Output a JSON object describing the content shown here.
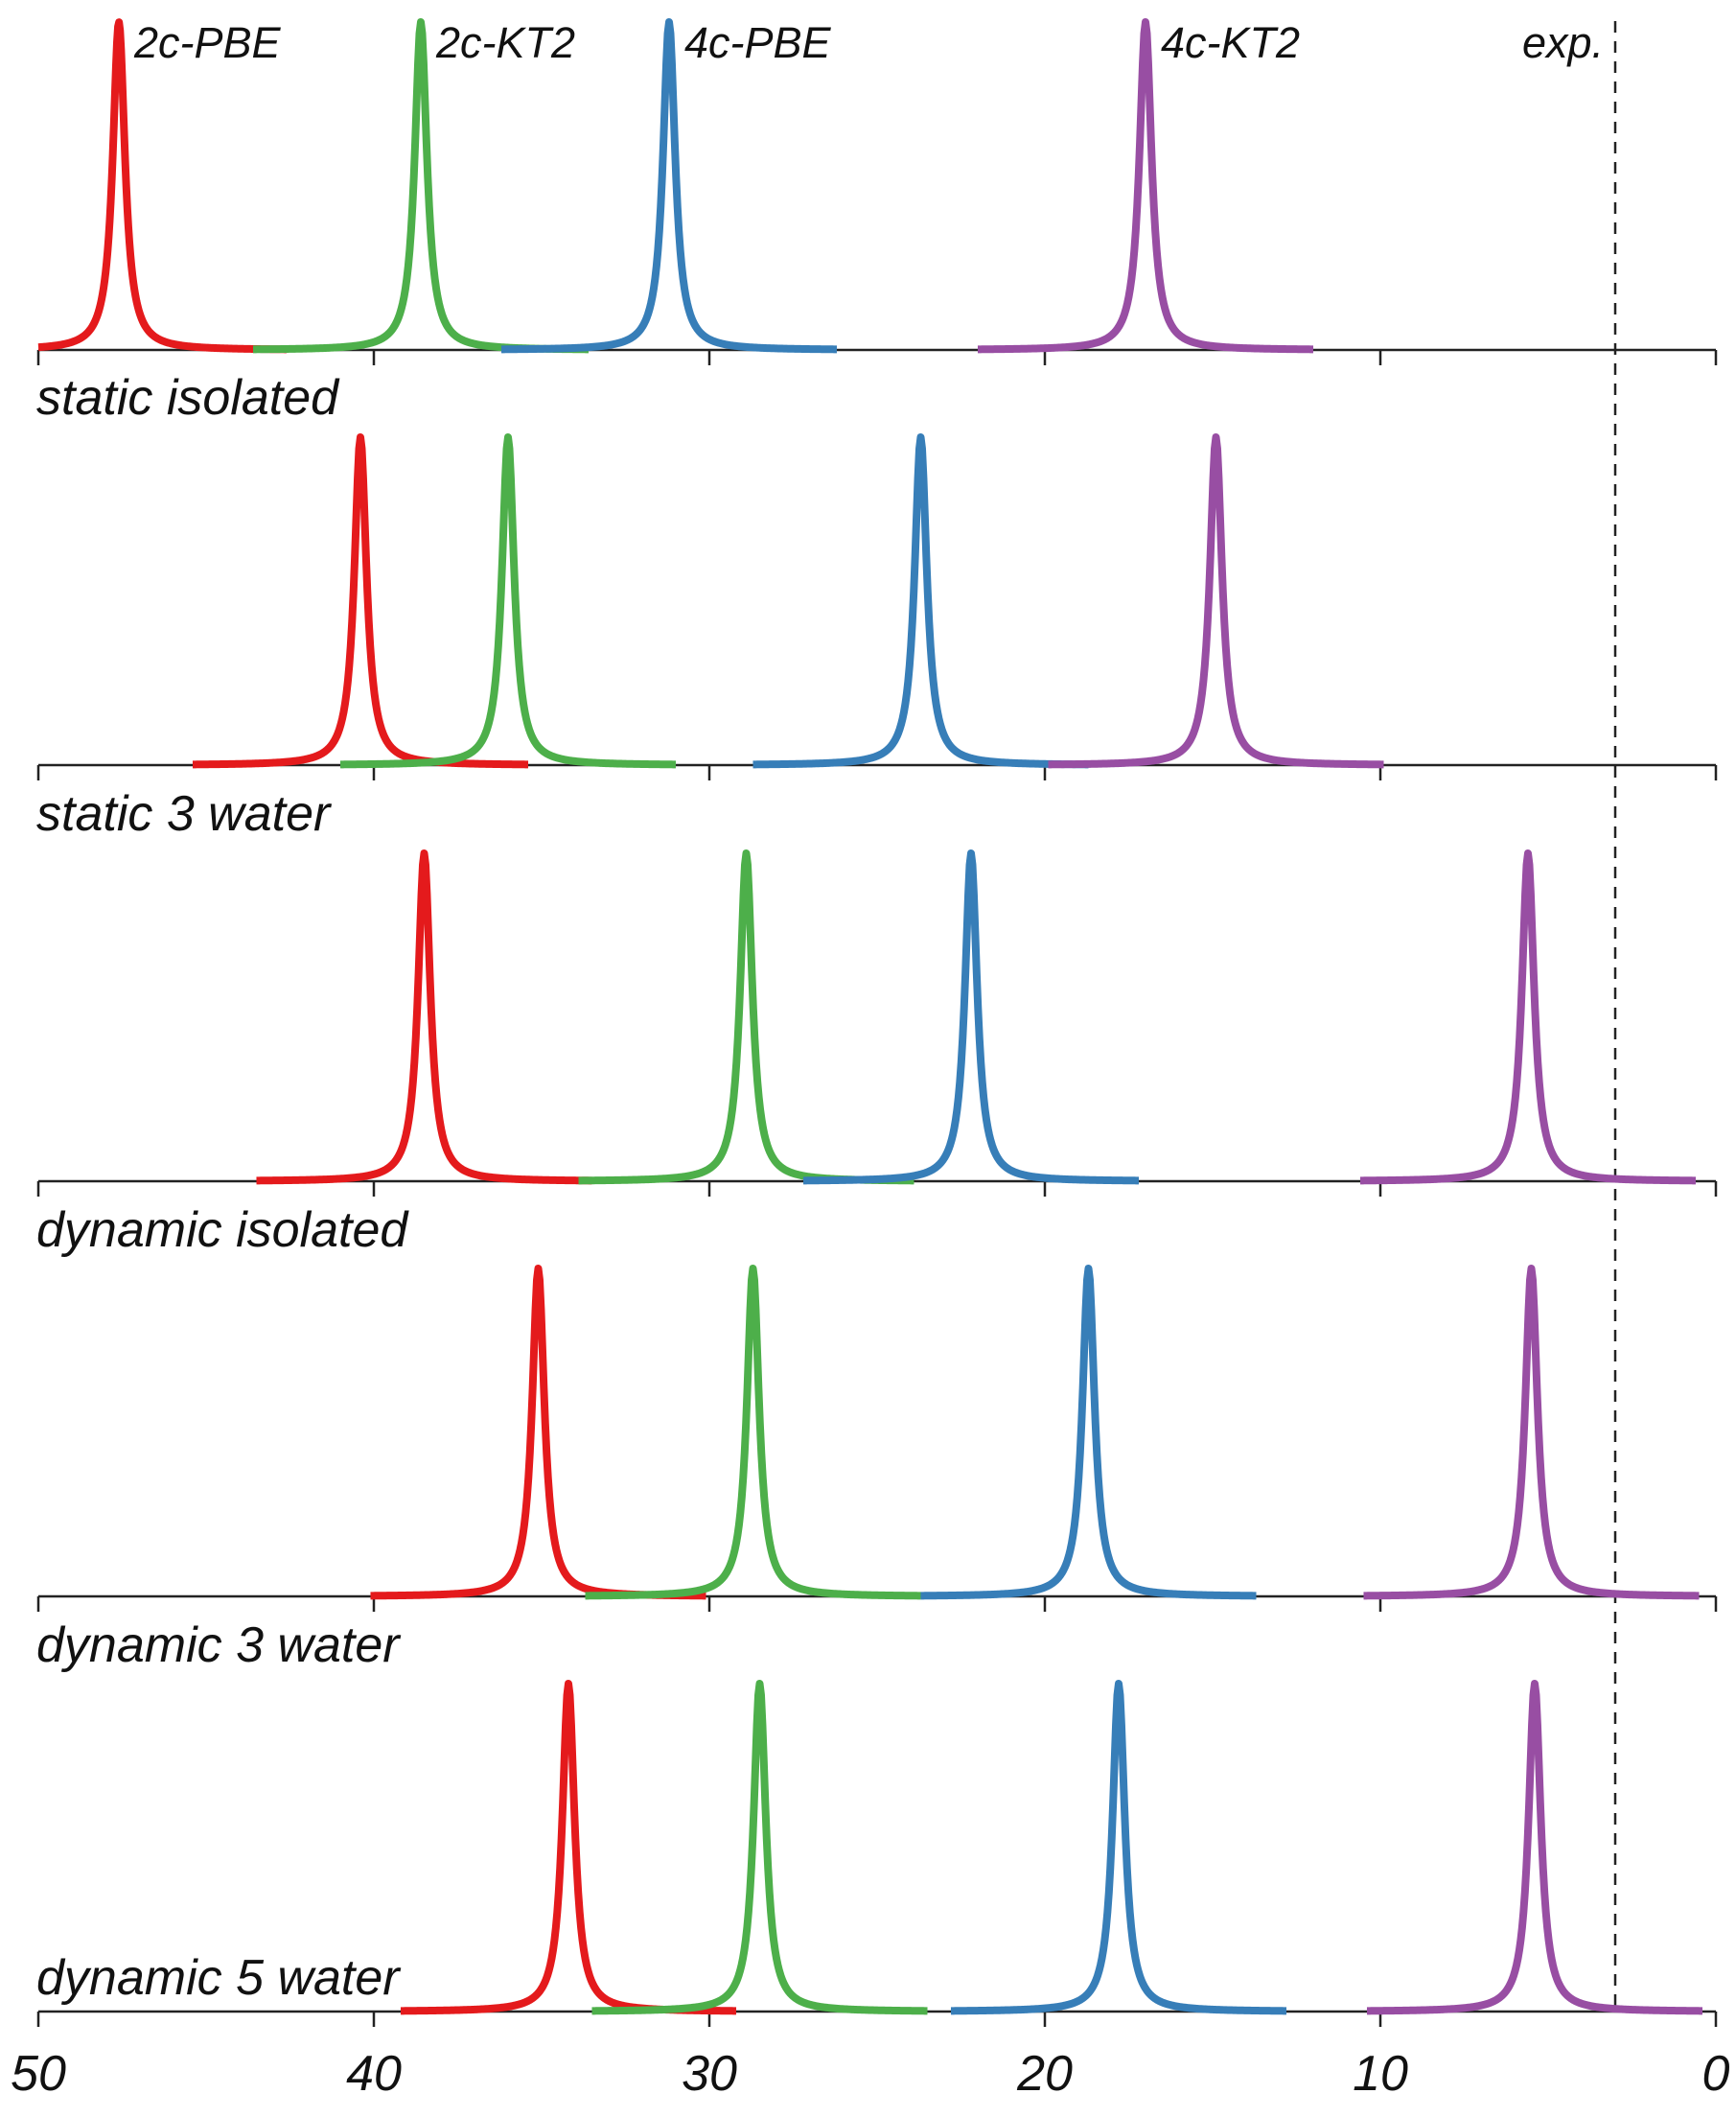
{
  "chart_data": {
    "type": "line",
    "xlim": [
      50,
      0
    ],
    "x_ticks": [
      "50",
      "40",
      "30",
      "20",
      "10",
      "0"
    ],
    "experimental": {
      "label": "exp.",
      "value": 3
    },
    "series": [
      {
        "name": "2c-PBE",
        "color": "#e41a1c"
      },
      {
        "name": "2c-KT2",
        "color": "#4daf4a"
      },
      {
        "name": "4c-PBE",
        "color": "#377eb8"
      },
      {
        "name": "4c-KT2",
        "color": "#984ea3"
      }
    ],
    "panels": [
      {
        "label": "",
        "peaks": [
          47.6,
          38.6,
          31.2,
          17.0
        ]
      },
      {
        "label": "static isolated",
        "peaks": [
          40.4,
          36.0,
          23.7,
          14.9
        ]
      },
      {
        "label": "static 3 water",
        "peaks": [
          38.5,
          28.9,
          22.2,
          5.6
        ]
      },
      {
        "label": "dynamic isolated",
        "peaks": [
          35.1,
          28.7,
          18.7,
          5.5
        ]
      },
      {
        "label": "dynamic 3 water",
        "peaks": [
          34.2,
          28.5,
          17.8,
          5.4
        ]
      }
    ],
    "bottom_label": "dynamic 5 water"
  }
}
